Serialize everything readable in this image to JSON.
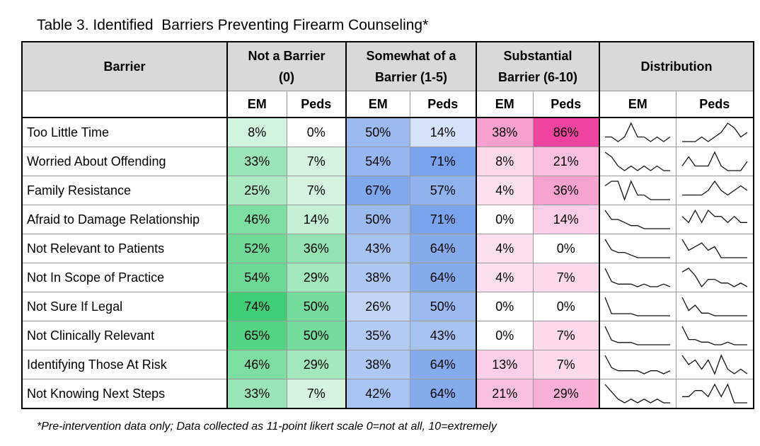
{
  "title": "Table 3. Identified  Barriers Preventing Firearm Counseling*",
  "footnote": "*Pre-intervention data only; Data collected as 11-point likert scale 0=not at all, 10=extremely",
  "headers": {
    "barrier": "Barrier",
    "group1_a": "Not a Barrier",
    "group1_b": "(0)",
    "group2_a": "Somewhat of a",
    "group2_b": "Barrier (1-5)",
    "group3_a": "Substantial",
    "group3_b": "Barrier (6-10)",
    "distribution": "Distribution",
    "em": "EM",
    "peds": "Peds"
  },
  "colors": {
    "green": "#1bc55c",
    "blue": "#5b8fe6",
    "pink": "#ee3b9c"
  },
  "rows": [
    {
      "label": "Too Little Time",
      "not_em": "8%",
      "not_peds": "0%",
      "some_em": "50%",
      "some_peds": "14%",
      "sub_em": "38%",
      "sub_peds": "86%",
      "shade": [
        0.08,
        0.0,
        0.5,
        0.14,
        0.38,
        0.86
      ],
      "dist_em": [
        1,
        1,
        0,
        1,
        4,
        1,
        1,
        0,
        1,
        0,
        1
      ],
      "dist_peds": [
        0,
        0,
        0,
        1,
        0,
        1,
        2,
        4,
        3,
        1,
        2
      ]
    },
    {
      "label": "Worried About Offending",
      "not_em": "33%",
      "not_peds": "7%",
      "some_em": "54%",
      "some_peds": "71%",
      "sub_em": "8%",
      "sub_peds": "21%",
      "shade": [
        0.33,
        0.07,
        0.54,
        0.71,
        0.08,
        0.21
      ],
      "dist_em": [
        4,
        3,
        1,
        0,
        1,
        0,
        1,
        0,
        1,
        0,
        0
      ],
      "dist_peds": [
        1,
        3,
        1,
        1,
        1,
        4,
        1,
        0,
        0,
        0,
        2
      ]
    },
    {
      "label": "Family Resistance",
      "not_em": "25%",
      "not_peds": "7%",
      "some_em": "67%",
      "some_peds": "57%",
      "sub_em": "4%",
      "sub_peds": "36%",
      "shade": [
        0.25,
        0.07,
        0.67,
        0.57,
        0.04,
        0.36
      ],
      "dist_em": [
        3,
        4,
        4,
        0,
        4,
        1,
        1,
        0,
        0,
        0,
        0
      ],
      "dist_peds": [
        1,
        1,
        1,
        1,
        2,
        4,
        2,
        1,
        2,
        3,
        2
      ]
    },
    {
      "label": "Afraid to Damage Relationship",
      "not_em": "46%",
      "not_peds": "14%",
      "some_em": "50%",
      "some_peds": "71%",
      "sub_em": "0%",
      "sub_peds": "14%",
      "shade": [
        0.46,
        0.14,
        0.5,
        0.71,
        0.0,
        0.14
      ],
      "dist_em": [
        6,
        3,
        3,
        2,
        1,
        1,
        0,
        0,
        0,
        0,
        0
      ],
      "dist_peds": [
        2,
        1,
        3,
        1,
        3,
        2,
        2,
        1,
        2,
        1,
        1
      ]
    },
    {
      "label": "Not Relevant to Patients",
      "not_em": "52%",
      "not_peds": "36%",
      "some_em": "43%",
      "some_peds": "64%",
      "sub_em": "4%",
      "sub_peds": "0%",
      "shade": [
        0.52,
        0.36,
        0.43,
        0.64,
        0.04,
        0.0
      ],
      "dist_em": [
        7,
        3,
        2,
        2,
        1,
        0,
        0,
        0,
        0,
        0,
        0
      ],
      "dist_peds": [
        5,
        2,
        3,
        4,
        2,
        3,
        0,
        0,
        0,
        0,
        0
      ]
    },
    {
      "label": "Not In Scope of Practice",
      "not_em": "54%",
      "not_peds": "29%",
      "some_em": "38%",
      "some_peds": "64%",
      "sub_em": "4%",
      "sub_peds": "7%",
      "shade": [
        0.54,
        0.29,
        0.38,
        0.64,
        0.04,
        0.07
      ],
      "dist_em": [
        7,
        2,
        1,
        1,
        1,
        0,
        1,
        0,
        0,
        1,
        0
      ],
      "dist_peds": [
        4,
        5,
        3,
        0,
        2,
        2,
        1,
        1,
        0,
        1,
        0
      ]
    },
    {
      "label": "Not Sure If Legal",
      "not_em": "74%",
      "not_peds": "50%",
      "some_em": "26%",
      "some_peds": "50%",
      "sub_em": "0%",
      "sub_peds": "0%",
      "shade": [
        0.74,
        0.5,
        0.26,
        0.5,
        0.0,
        0.0
      ],
      "dist_em": [
        9,
        1,
        1,
        1,
        1,
        0,
        0,
        0,
        0,
        0,
        0
      ],
      "dist_peds": [
        7,
        2,
        4,
        1,
        1,
        0,
        0,
        0,
        0,
        0,
        0
      ]
    },
    {
      "label": "Not Clinically Relevant",
      "not_em": "65%",
      "not_peds": "50%",
      "some_em": "35%",
      "some_peds": "43%",
      "sub_em": "0%",
      "sub_peds": "7%",
      "shade": [
        0.65,
        0.5,
        0.35,
        0.43,
        0.0,
        0.07
      ],
      "dist_em": [
        8,
        2,
        1,
        1,
        1,
        0,
        0,
        0,
        0,
        0,
        0
      ],
      "dist_peds": [
        7,
        2,
        2,
        1,
        1,
        0,
        0,
        1,
        0,
        0,
        0
      ]
    },
    {
      "label": "Identifying Those At Risk",
      "not_em": "46%",
      "not_peds": "29%",
      "some_em": "38%",
      "some_peds": "64%",
      "sub_em": "13%",
      "sub_peds": "7%",
      "shade": [
        0.46,
        0.29,
        0.38,
        0.64,
        0.13,
        0.07
      ],
      "dist_em": [
        6,
        2,
        1,
        1,
        1,
        1,
        0,
        1,
        1,
        0,
        1
      ],
      "dist_peds": [
        4,
        2,
        3,
        1,
        3,
        0,
        4,
        1,
        0,
        1,
        0
      ]
    },
    {
      "label": "Not Knowing Next Steps",
      "not_em": "33%",
      "not_peds": "7%",
      "some_em": "42%",
      "some_peds": "64%",
      "sub_em": "21%",
      "sub_peds": "29%",
      "shade": [
        0.33,
        0.07,
        0.42,
        0.64,
        0.21,
        0.29
      ],
      "dist_em": [
        5,
        3,
        1,
        0,
        1,
        0,
        1,
        0,
        1,
        0,
        0
      ],
      "dist_peds": [
        1,
        1,
        2,
        2,
        1,
        3,
        1,
        3,
        0,
        0,
        0
      ]
    }
  ]
}
